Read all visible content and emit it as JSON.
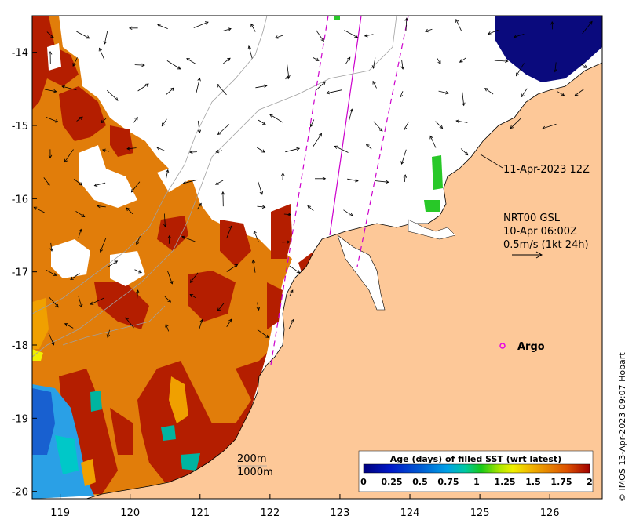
{
  "map": {
    "x_ticks": [
      "119",
      "120",
      "121",
      "122",
      "123",
      "124",
      "125",
      "126"
    ],
    "y_ticks": [
      "-14",
      "-15",
      "-16",
      "-17",
      "-18",
      "-19",
      "-20"
    ],
    "lon_range": [
      118.6,
      126.75
    ],
    "lat_range": [
      -20.1,
      -13.5
    ],
    "annotation_date": "11-Apr-2023 12Z",
    "current_legend": {
      "line1": "NRT00 GSL",
      "line2": "10-Apr 06:00Z",
      "line3": "0.5m/s (1kt 24h)"
    },
    "argo_label": "Argo",
    "depth_200": "200m",
    "depth_1000": "1000m",
    "colorbar": {
      "title": "Age (days) of filled SST (wrt latest)",
      "tick_labels": [
        "0",
        "0.25",
        "0.5",
        "0.75",
        "1",
        "1.25",
        "1.5",
        "1.75",
        "2"
      ]
    },
    "copyright": "© IMOS 13-Apr-2023 09:07 Hobart",
    "colors": {
      "land": "#fdc898",
      "old_sst": "#e17d0a",
      "oldest_sst": "#b41e00",
      "fresh_sst": "#0a0a7d",
      "mid_sst": "#2aa0e6",
      "green_sst": "#28c828",
      "argo": "#e600e6"
    }
  }
}
